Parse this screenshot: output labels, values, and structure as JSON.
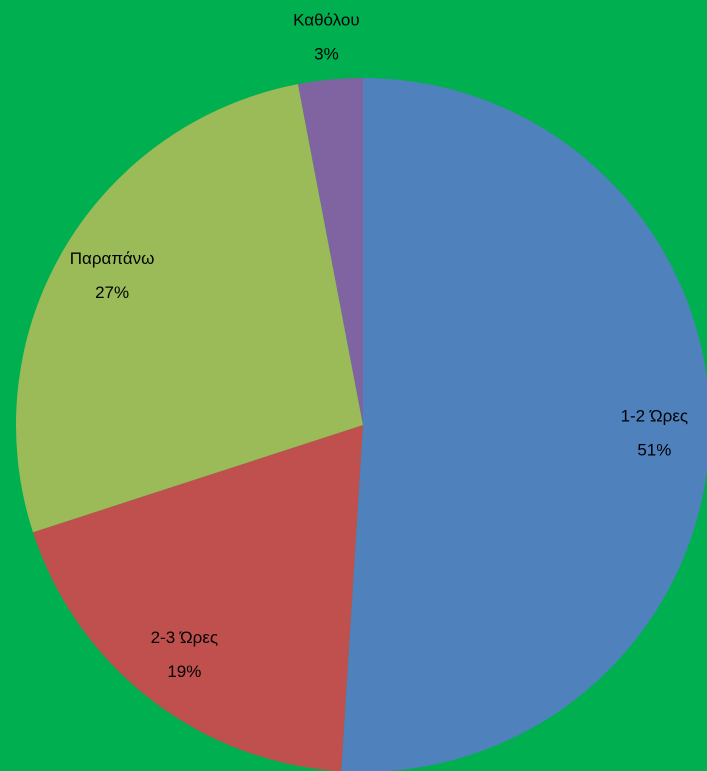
{
  "chart_data": {
    "type": "pie",
    "categories": [
      "1-2 Ώρες",
      "2-3 Ώρες",
      "Παραπάνω",
      "Καθόλου"
    ],
    "values": [
      51,
      19,
      27,
      3
    ],
    "value_labels": [
      "51%",
      "19%",
      "27%",
      "3%"
    ],
    "colors": [
      "#4f81bd",
      "#c0504d",
      "#9bbb59",
      "#8064a2"
    ],
    "background": "#00b050"
  }
}
